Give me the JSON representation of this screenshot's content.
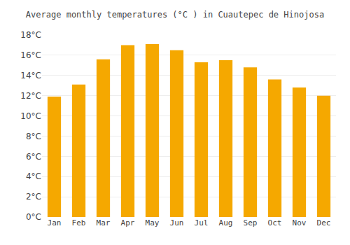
{
  "chart_data": {
    "type": "bar",
    "title": "Average monthly temperatures (°C ) in Cuautepec de Hinojosa",
    "categories": [
      "Jan",
      "Feb",
      "Mar",
      "Apr",
      "May",
      "Jun",
      "Jul",
      "Aug",
      "Sep",
      "Oct",
      "Nov",
      "Dec"
    ],
    "values": [
      11.9,
      13.1,
      15.6,
      17.0,
      17.1,
      16.5,
      15.3,
      15.5,
      14.8,
      13.6,
      12.8,
      12.0
    ],
    "color": "#F5A800",
    "ylim": [
      0,
      18
    ],
    "yticks": [
      {
        "value": 0,
        "label": "0°C"
      },
      {
        "value": 2,
        "label": "2°C"
      },
      {
        "value": 4,
        "label": "4°C"
      },
      {
        "value": 6,
        "label": "6°C"
      },
      {
        "value": 8,
        "label": "8°C"
      },
      {
        "value": 10,
        "label": "10°C"
      },
      {
        "value": 12,
        "label": "12°C"
      },
      {
        "value": 14,
        "label": "14°C"
      },
      {
        "value": 16,
        "label": "16°C"
      },
      {
        "value": 18,
        "label": "18°C"
      }
    ],
    "grid": true
  }
}
